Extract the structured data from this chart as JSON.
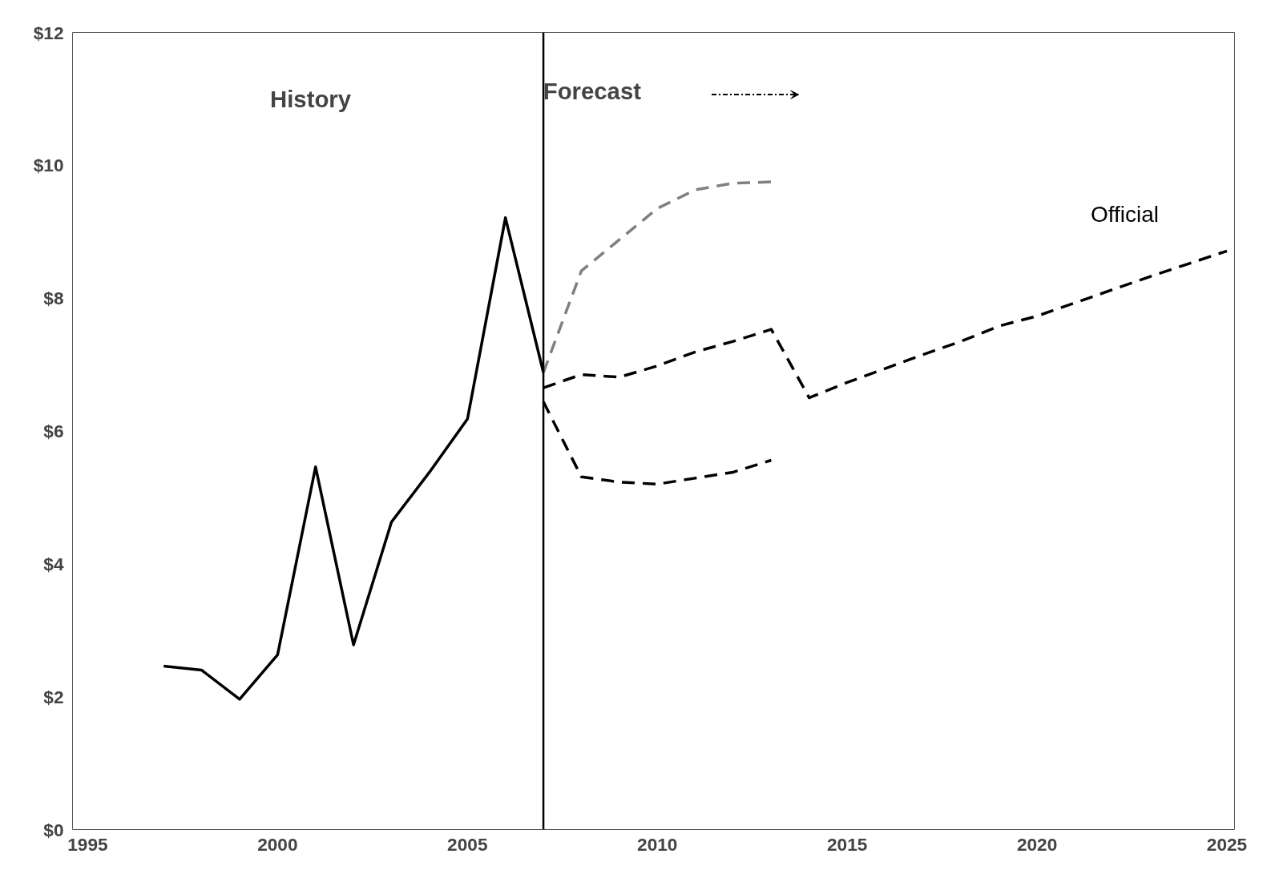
{
  "chart_data": {
    "type": "line",
    "annotations": [
      "History",
      "Forecast"
    ],
    "xlim": [
      1994.6,
      2025.2
    ],
    "xticks": [
      1995,
      2000,
      2005,
      2010,
      2015,
      2020,
      2025
    ],
    "ylim": [
      0,
      12
    ],
    "yticks": [
      {
        "value": 0,
        "label": "$0"
      },
      {
        "value": 2,
        "label": "$2"
      },
      {
        "value": 4,
        "label": "$4"
      },
      {
        "value": 6,
        "label": "$6"
      },
      {
        "value": 8,
        "label": "$8"
      },
      {
        "value": 10,
        "label": "$10"
      },
      {
        "value": 12,
        "label": "$12"
      }
    ],
    "ref_lines": [
      {
        "axis": "x",
        "value": 2007,
        "label": null,
        "color": "#000000",
        "line_style": "solid"
      }
    ],
    "grid": false,
    "legend": false,
    "series": [
      {
        "color": "#000000",
        "line_style": "solid",
        "x": [
          1997,
          1998,
          1999,
          2000,
          2001,
          2002,
          2003,
          2004,
          2005,
          2006,
          2007
        ],
        "values": [
          2.46,
          2.4,
          1.96,
          2.63,
          5.46,
          2.78,
          4.63,
          5.38,
          6.18,
          9.21,
          6.88
        ]
      },
      {
        "name": "Official",
        "color": "#000000",
        "line_style": "dashed",
        "x": [
          2007,
          2008,
          2009,
          2010,
          2011,
          2012,
          2013,
          2014,
          2015,
          2016,
          2017,
          2018,
          2019,
          2020,
          2021,
          2022,
          2023,
          2024,
          2025
        ],
        "values": [
          6.65,
          6.85,
          6.81,
          6.98,
          7.19,
          7.35,
          7.53,
          6.5,
          6.73,
          6.94,
          7.15,
          7.35,
          7.58,
          7.73,
          7.93,
          8.13,
          8.33,
          8.52,
          8.71
        ]
      },
      {
        "color": "#808080",
        "line_style": "dashed",
        "x": [
          2007,
          2008,
          2009,
          2010,
          2011,
          2012,
          2013
        ],
        "values": [
          6.88,
          8.41,
          8.88,
          9.35,
          9.63,
          9.73,
          9.75
        ]
      },
      {
        "color": "#000000",
        "line_style": "dashed",
        "x": [
          2007,
          2008,
          2009,
          2010,
          2011,
          2012,
          2013
        ],
        "values": [
          6.44,
          5.31,
          5.23,
          5.2,
          5.29,
          5.38,
          5.56
        ]
      }
    ]
  }
}
